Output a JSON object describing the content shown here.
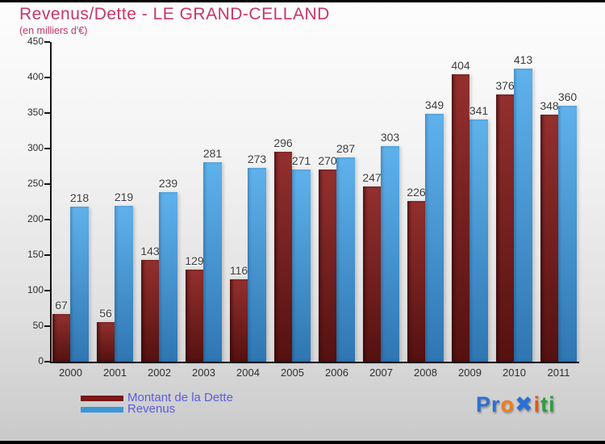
{
  "header": {
    "title": "Revenus/Dette - LE GRAND-CELLAND",
    "subtitle": "(en milliers d'€)"
  },
  "chart_data": {
    "type": "bar",
    "title": "Revenus/Dette - LE GRAND-CELLAND",
    "subtitle": "(en milliers d'€)",
    "categories": [
      "2000",
      "2001",
      "2002",
      "2003",
      "2004",
      "2005",
      "2006",
      "2007",
      "2008",
      "2009",
      "2010",
      "2011"
    ],
    "series": [
      {
        "name": "Montant de la Dette",
        "color_top": "#93302e",
        "color_bottom": "#541110",
        "values": [
          67,
          56,
          143,
          129,
          116,
          296,
          270,
          247,
          226,
          404,
          376,
          348
        ]
      },
      {
        "name": "Revenus",
        "color_top": "#5fb2ec",
        "color_bottom": "#2f76b2",
        "values": [
          218,
          219,
          239,
          281,
          273,
          271,
          287,
          303,
          349,
          341,
          413,
          360
        ]
      }
    ],
    "ylim": [
      0,
      450
    ],
    "yticks": [
      0,
      50,
      100,
      150,
      200,
      250,
      300,
      350,
      400,
      450
    ],
    "grid": false,
    "legend_position": "bottom-left"
  },
  "legend": {
    "swatch_dette": "#7a1717",
    "swatch_revenus": "#3e97d6",
    "text_color": "#5b5bdf"
  },
  "logo": {
    "name": "Proxiti",
    "letters": [
      {
        "char": "P",
        "color": "#2d6fd4"
      },
      {
        "char": "r",
        "color": "#2d6fd4"
      },
      {
        "char": "o",
        "color": "#f07d1a"
      },
      {
        "char": "✖",
        "color": "#2d6fd4"
      },
      {
        "char": "i",
        "color": "#e8540e"
      },
      {
        "char": "t",
        "color": "#2f9e3f"
      },
      {
        "char": "i",
        "color": "#2f9e3f"
      }
    ]
  },
  "colors": {
    "title": "#c73767",
    "axis": "#141414",
    "tick_label": "#2f2f2f",
    "value_label": "#3b3b3b",
    "background_top": "#fdfdfd",
    "background_bottom": "#c9c9c9"
  }
}
